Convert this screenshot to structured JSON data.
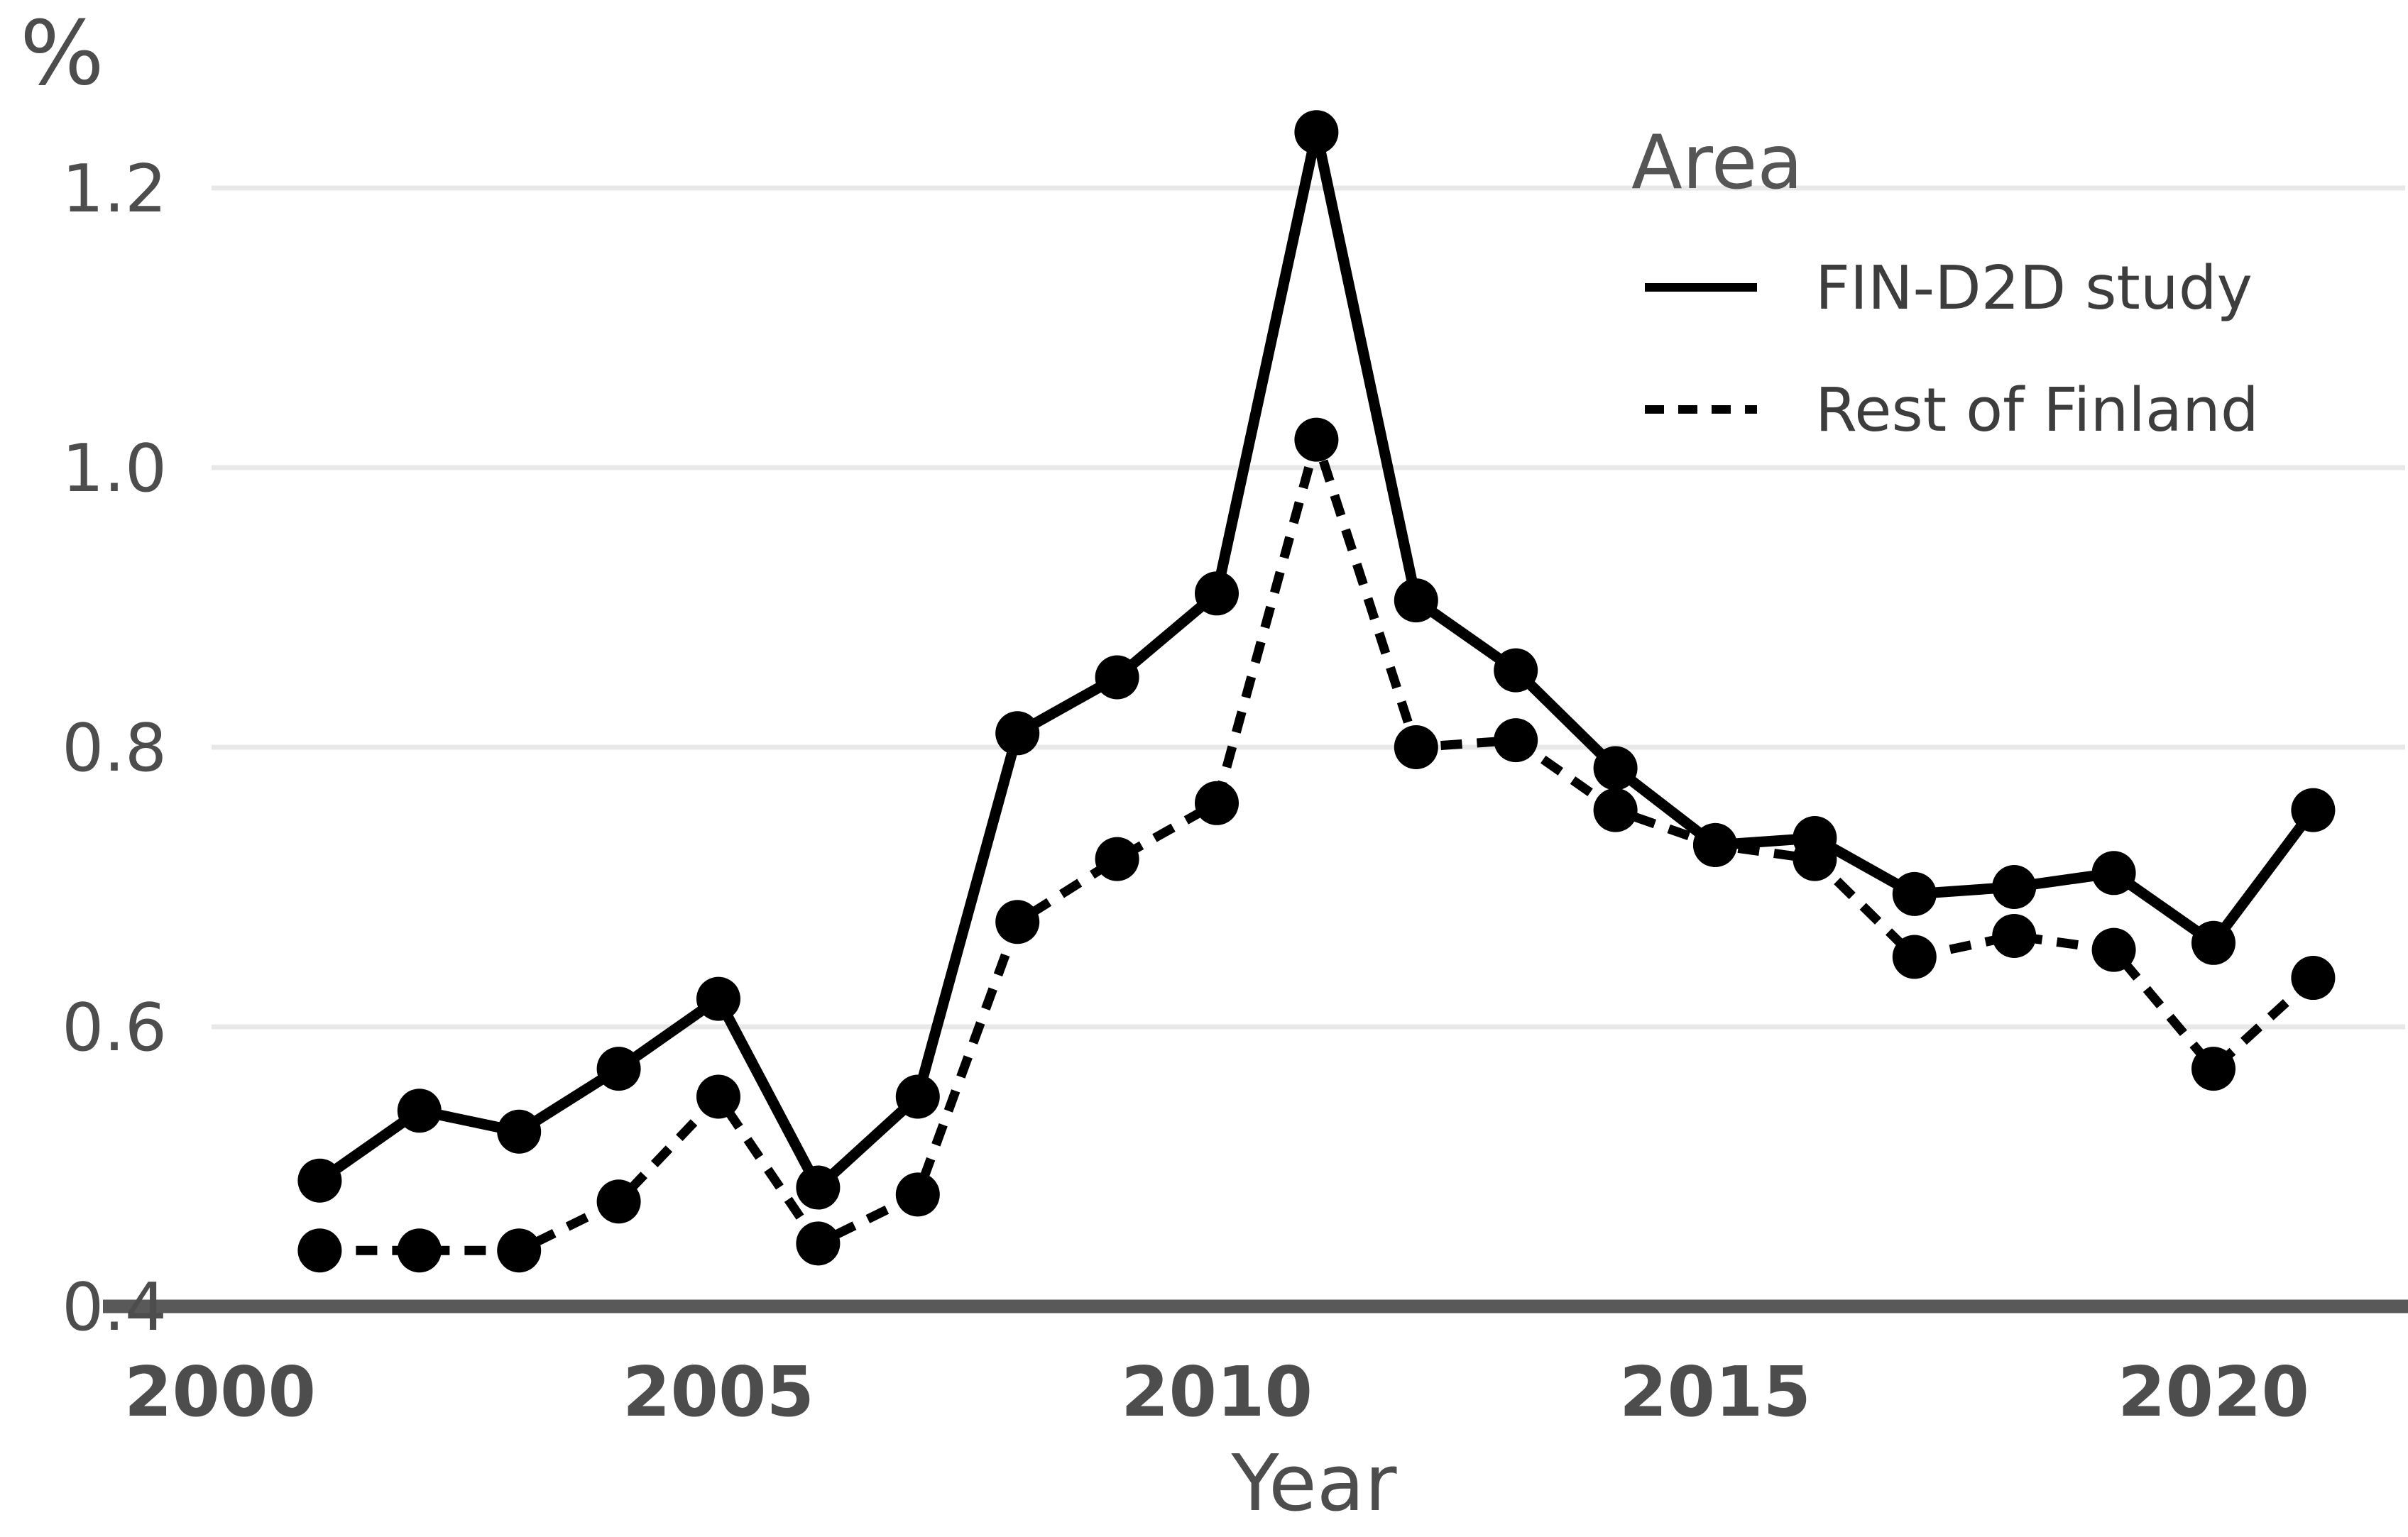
{
  "chart_data": {
    "type": "line",
    "title": "",
    "ylabel": "%",
    "xlabel": "Year",
    "legend_title": "Area",
    "legend_position": "top-right",
    "grid": "horizontal",
    "background": "#ffffff",
    "x": [
      2001,
      2002,
      2003,
      2004,
      2005,
      2006,
      2007,
      2008,
      2009,
      2010,
      2011,
      2012,
      2013,
      2014,
      2015,
      2016,
      2017,
      2018,
      2019,
      2020,
      2021
    ],
    "x_ticks": [
      2000,
      2005,
      2010,
      2015,
      2020
    ],
    "y_ticks": [
      0.4,
      0.6,
      0.8,
      1.0,
      1.2
    ],
    "xlim": [
      1999.0,
      2021.9
    ],
    "ylim": [
      0.4,
      1.27
    ],
    "series": [
      {
        "name": "FIN-D2D study",
        "style": "solid",
        "values": [
          0.49,
          0.54,
          0.525,
          0.57,
          0.62,
          0.485,
          0.55,
          0.81,
          0.85,
          0.91,
          1.24,
          0.905,
          0.855,
          0.785,
          0.73,
          0.735,
          0.695,
          0.7,
          0.71,
          0.66,
          0.755
        ]
      },
      {
        "name": "Rest of Finland",
        "style": "dashed",
        "values": [
          0.44,
          0.44,
          0.44,
          0.475,
          0.55,
          0.445,
          0.48,
          0.675,
          0.72,
          0.76,
          1.02,
          0.8,
          0.805,
          0.755,
          0.73,
          0.72,
          0.65,
          0.665,
          0.655,
          0.57,
          0.635
        ]
      }
    ]
  },
  "colors": {
    "line": "#000000",
    "grid": "#e8e8e8",
    "axis": "#595959",
    "tick_text": "#4d4d4d",
    "legend_text": "#3d3d3d",
    "legend_title_text": "#555555",
    "background": "#ffffff"
  }
}
